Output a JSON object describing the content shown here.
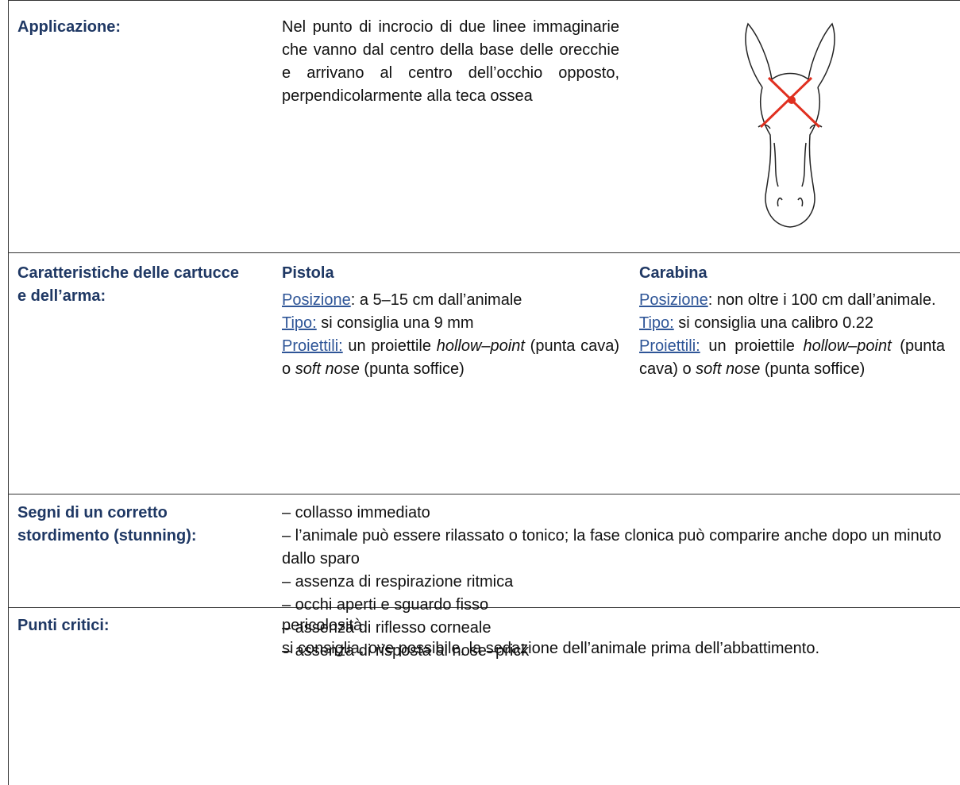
{
  "table": {
    "rows": [
      {
        "label": "Applicazione:",
        "text": "Nel punto di incrocio di due linee immaginarie che vanno dal centro della base delle orecchie e arrivano al centro dell’occhio opposto, perpendicolarmente alla teca ossea"
      },
      {
        "label": "Caratteristiche delle cartucce e dell’arma:",
        "columns": [
          {
            "title": "Pistola",
            "items": [
              {
                "label": "Posizione",
                "parts": [
                  ": a 5–15 cm dall’animale"
                ]
              },
              {
                "label": "Tipo:",
                "parts": [
                  " si consiglia una 9 mm"
                ]
              },
              {
                "label": "Proiettili:",
                "parts": [
                  " un proiettile ",
                  "hollow–point",
                  " (punta cava) o ",
                  "soft nose",
                  " (punta soffice)"
                ]
              }
            ]
          },
          {
            "title": "Carabina",
            "items": [
              {
                "label": "Posizione",
                "parts": [
                  ": non oltre i 100 cm dall’animale."
                ]
              },
              {
                "label": "Tipo:",
                "parts": [
                  " si consiglia una calibro 0.22"
                ]
              },
              {
                "label": "Proiettili:",
                "parts": [
                  " un proiettile ",
                  "hollow–point",
                  " (punta cava) o ",
                  "soft nose",
                  " (punta soffice)"
                ]
              }
            ]
          }
        ]
      },
      {
        "label": "Segni di un corretto stordimento (stunning):",
        "items": [
          "– collasso immediato",
          "– l’animale può essere rilassato o tonico; la fase clonica può comparire anche dopo un minuto dallo sparo",
          "– assenza di respirazione ritmica",
          "– occhi aperti e sguardo fisso",
          "– assenza di riflesso corneale",
          "– assenza di risposta al nose–prick"
        ]
      },
      {
        "label": "Punti critici:",
        "items": [
          "pericolosità",
          "si consiglia, ove possibile, la sedazione dell’animale prima dell’abbattimento."
        ]
      }
    ]
  }
}
